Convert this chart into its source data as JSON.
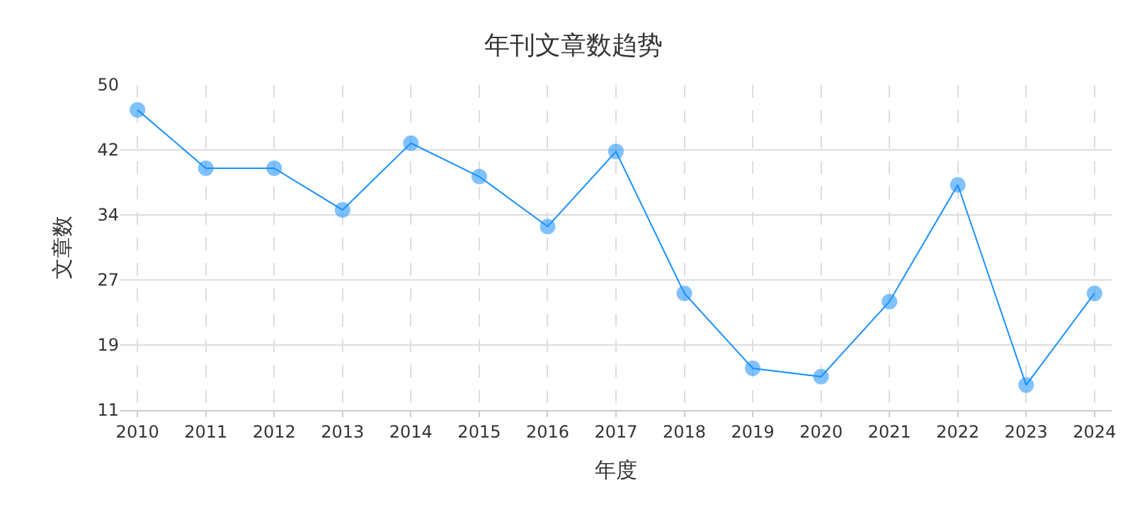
{
  "chart_data": {
    "type": "line",
    "title": "年刊文章数趋势",
    "xlabel": "年度",
    "ylabel": "文章数",
    "categories": [
      "2010",
      "2011",
      "2012",
      "2013",
      "2014",
      "2015",
      "2016",
      "2017",
      "2018",
      "2019",
      "2020",
      "2021",
      "2022",
      "2023",
      "2024"
    ],
    "series": [
      {
        "color": "#1890ff",
        "values": [
          47,
          40,
          40,
          35,
          43,
          39,
          33,
          42,
          25,
          16,
          15,
          24,
          38,
          14,
          25
        ]
      }
    ],
    "ylim": [
      11,
      50
    ],
    "yticks": [
      11,
      {
        "value": 18.8,
        "label": "19"
      },
      {
        "value": 26.6,
        "label": "27"
      },
      {
        "value": 34.4,
        "label": "34"
      },
      {
        "value": 42.2,
        "label": "42"
      },
      50
    ],
    "grid": true,
    "marker": "circle",
    "line_style": "solid",
    "legend": false
  }
}
